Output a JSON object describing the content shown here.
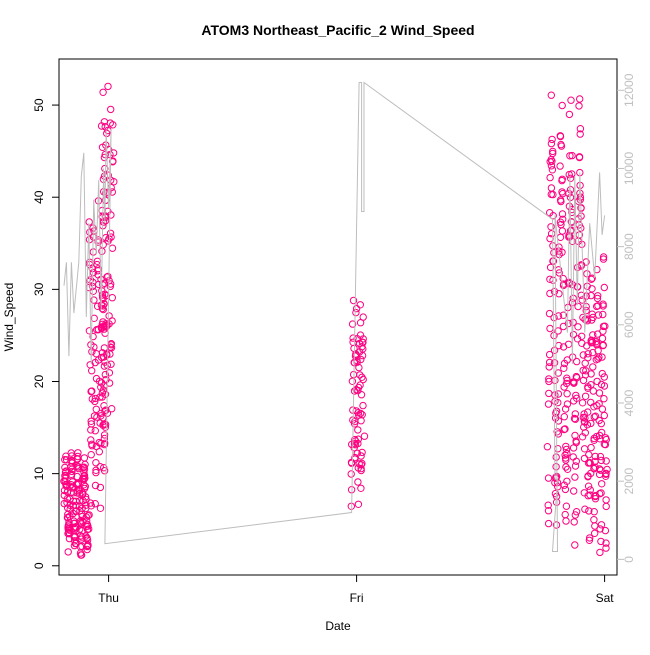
{
  "chart_data": {
    "type": "scatter",
    "title": "ATOM3 Northeast_Pacific_2 Wind_Speed",
    "xlabel": "Date",
    "ylabel": "Wind_Speed",
    "x_ticks": [
      "Thu",
      "Fri",
      "Sat"
    ],
    "x_range_days": [
      -0.2,
      2.05
    ],
    "ylim": [
      -1,
      55
    ],
    "y_ticks": [
      0,
      10,
      20,
      30,
      40,
      50
    ],
    "y2lim": [
      -400,
      12800
    ],
    "y2_ticks": [
      0,
      2000,
      4000,
      6000,
      8000,
      10000,
      12000
    ],
    "grid": false,
    "colors": {
      "points": "#ff0080",
      "secondary_line": "#bdbdbd",
      "right_axis": "#c0c0c0",
      "frame": "#000000"
    },
    "series": [
      {
        "type": "scatter",
        "clusters": [
          {
            "x_start": -0.18,
            "x_end": -0.08,
            "y_min": 1.0,
            "y_max": 12.5
          },
          {
            "x_start": -0.08,
            "x_end": -0.01,
            "y_min": 5.0,
            "y_max": 40.0
          },
          {
            "x_start": -0.01,
            "x_end": -0.03,
            "y_min": 14.0,
            "y_max": 52.8
          },
          {
            "x_start": -0.02,
            "x_end": 0.02,
            "y_min": 13.5,
            "y_max": 52.8
          },
          {
            "x_start": 0.98,
            "x_end": 1.03,
            "y_min": 5.8,
            "y_max": 30.0
          },
          {
            "x_start": 1.77,
            "x_end": 1.92,
            "y_min": 1.0,
            "y_max": 51.5
          },
          {
            "x_start": 1.92,
            "x_end": 2.01,
            "y_min": 0.8,
            "y_max": 34.0
          }
        ]
      },
      {
        "type": "line",
        "axis": "right",
        "points": [
          [
            -0.18,
            7000
          ],
          [
            -0.17,
            7600
          ],
          [
            -0.16,
            5200
          ],
          [
            -0.15,
            7600
          ],
          [
            -0.14,
            6300
          ],
          [
            -0.12,
            7600
          ],
          [
            -0.11,
            9800
          ],
          [
            -0.1,
            10400
          ],
          [
            -0.09,
            6200
          ],
          [
            -0.08,
            8600
          ],
          [
            -0.07,
            5000
          ],
          [
            -0.06,
            9200
          ],
          [
            -0.05,
            7800
          ],
          [
            -0.04,
            9700
          ],
          [
            -0.03,
            6400
          ],
          [
            -0.02,
            10000
          ],
          [
            -0.015,
            8600
          ],
          [
            -0.01,
            11000
          ],
          [
            0.0,
            9000
          ],
          [
            0.01,
            11000
          ],
          [
            -0.015,
            400
          ],
          [
            0.98,
            1200
          ],
          [
            1.01,
            12200
          ],
          [
            1.02,
            12200
          ],
          [
            1.02,
            8900
          ],
          [
            1.03,
            8900
          ],
          [
            1.03,
            12200
          ],
          [
            1.79,
            8700
          ],
          [
            1.8,
            2050
          ],
          [
            1.81,
            2050
          ],
          [
            1.79,
            200
          ],
          [
            1.81,
            200
          ],
          [
            1.8,
            8800
          ],
          [
            1.85,
            5800
          ],
          [
            1.86,
            9800
          ],
          [
            1.87,
            5000
          ],
          [
            1.88,
            9800
          ],
          [
            1.89,
            6500
          ],
          [
            1.9,
            9900
          ],
          [
            1.92,
            5800
          ],
          [
            1.94,
            8600
          ],
          [
            1.96,
            7200
          ],
          [
            1.98,
            9900
          ],
          [
            1.99,
            8300
          ],
          [
            2.0,
            8800
          ]
        ]
      }
    ]
  }
}
